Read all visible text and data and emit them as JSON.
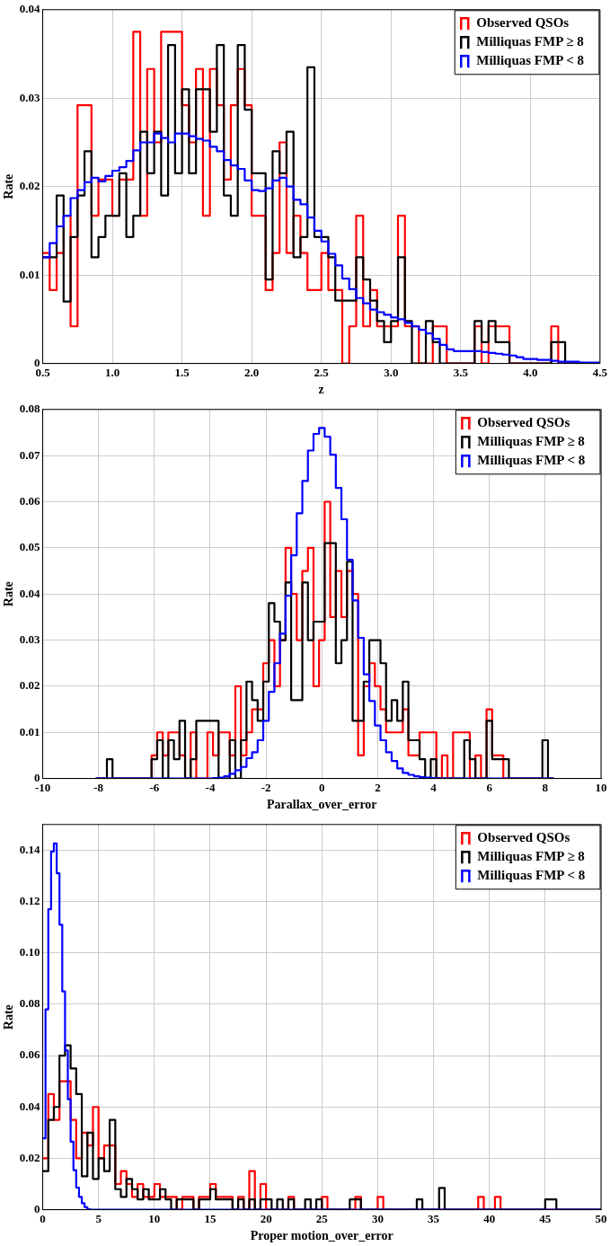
{
  "chart_data": [
    {
      "type": "histogram",
      "xlabel": "z",
      "ylabel": "Rate",
      "xlim": [
        0.5,
        4.5
      ],
      "xticks": [
        0.5,
        {
          "value": 1,
          "label": "1.0"
        },
        1.5,
        {
          "value": 2,
          "label": "2.0"
        },
        2.5,
        {
          "value": 3,
          "label": "3.0"
        },
        3.5,
        {
          "value": 4,
          "label": "4.0"
        },
        4.5
      ],
      "ylim": [
        0,
        0.04
      ],
      "yticks": [
        0,
        0.01,
        0.02,
        0.03,
        0.04
      ],
      "grid": true,
      "legend": "top right",
      "bins": [
        0.5,
        0.55,
        0.6,
        0.65,
        0.7,
        0.75,
        0.8,
        0.85,
        0.9,
        0.95,
        1.0,
        1.05,
        1.1,
        1.15,
        1.2,
        1.25,
        1.3,
        1.35,
        1.4,
        1.45,
        1.5,
        1.55,
        1.6,
        1.65,
        1.7,
        1.75,
        1.8,
        1.85,
        1.9,
        1.95,
        2.0,
        2.05,
        2.1,
        2.15,
        2.2,
        2.25,
        2.3,
        2.35,
        2.4,
        2.45,
        2.5,
        2.55,
        2.6,
        2.65,
        2.7,
        2.75,
        2.8,
        2.85,
        2.9,
        2.95,
        3.0,
        3.05,
        3.1,
        3.15,
        3.2,
        3.25,
        3.3,
        3.35,
        3.4,
        3.45,
        3.5,
        3.55,
        3.6,
        3.65,
        3.7,
        3.75,
        3.8,
        3.85,
        3.9,
        3.95,
        4.0,
        4.05,
        4.1,
        4.15,
        4.2,
        4.25,
        4.3,
        4.35,
        4.4,
        4.45,
        4.5
      ],
      "series": [
        {
          "name": "Observed QSOs",
          "color": "#ff0000",
          "values": [
            0.0125,
            0.0083,
            0.0125,
            0.0167,
            0.0042,
            0.0292,
            0.0292,
            0.0167,
            0.0208,
            0.0208,
            0.0167,
            0.0208,
            0.0208,
            0.0375,
            0.0167,
            0.0333,
            0.025,
            0.0375,
            0.0375,
            0.0375,
            0.0292,
            0.025,
            0.0333,
            0.0167,
            0.0333,
            0.0292,
            0.0208,
            0.0292,
            0.0333,
            0.0292,
            0.0167,
            0.0167,
            0.0083,
            0.0125,
            0.025,
            0.0125,
            0.0167,
            0.0125,
            0.0083,
            0.0083,
            0.0125,
            0.0083,
            0.0083,
            0,
            0.0042,
            0.0167,
            0.0042,
            0.0083,
            0.0042,
            0.0042,
            0.0042,
            0.0167,
            0.0042,
            0.0042,
            0,
            0,
            0.0042,
            0.0042,
            0,
            0,
            0,
            0,
            0.0042,
            0,
            0.0042,
            0.0042,
            0.0042,
            0,
            0,
            0,
            0,
            0,
            0,
            0.0042,
            0,
            0,
            0,
            0,
            0,
            0
          ]
        },
        {
          "name": "Milliquas FMP ≥ 8",
          "color": "#000000",
          "values": [
            0.012,
            0.012,
            0.019,
            0.007,
            0.0143,
            0.019,
            0.024,
            0.012,
            0.0143,
            0.0167,
            0.0167,
            0.0215,
            0.0143,
            0.0167,
            0.0262,
            0.0215,
            0.0262,
            0.019,
            0.036,
            0.0215,
            0.031,
            0.0215,
            0.031,
            0.031,
            0.0262,
            0.036,
            0.019,
            0.0167,
            0.036,
            0.0287,
            0.0215,
            0.0215,
            0.0095,
            0.024,
            0.0215,
            0.0262,
            0.012,
            0.0143,
            0.0335,
            0.0143,
            0.0143,
            0.012,
            0.0071,
            0.0071,
            0.0071,
            0.012,
            0.0095,
            0.0071,
            0.0048,
            0.0024,
            0.0048,
            0.012,
            0.0048,
            0,
            0,
            0.0048,
            0.0024,
            0,
            0,
            0,
            0,
            0,
            0.0048,
            0.0024,
            0.0048,
            0.0024,
            0.0024,
            0,
            0,
            0,
            0,
            0,
            0,
            0.0024,
            0.0024,
            0,
            0,
            0,
            0,
            0
          ]
        },
        {
          "name": "Milliquas FMP < 8",
          "color": "#0000ff",
          "values": [
            0.012,
            0.0136,
            0.0155,
            0.0167,
            0.0187,
            0.0196,
            0.0205,
            0.021,
            0.0206,
            0.0212,
            0.0218,
            0.0222,
            0.0229,
            0.0241,
            0.025,
            0.025,
            0.026,
            0.0255,
            0.025,
            0.026,
            0.026,
            0.0257,
            0.0254,
            0.0252,
            0.0245,
            0.024,
            0.023,
            0.0224,
            0.022,
            0.0207,
            0.0196,
            0.0195,
            0.0198,
            0.0207,
            0.021,
            0.02,
            0.0185,
            0.018,
            0.0165,
            0.015,
            0.0138,
            0.0124,
            0.0111,
            0.0096,
            0.0084,
            0.0074,
            0.0068,
            0.0061,
            0.0058,
            0.0055,
            0.0052,
            0.005,
            0.0046,
            0.0042,
            0.0038,
            0.0034,
            0.0028,
            0.0021,
            0.0016,
            0.0014,
            0.0014,
            0.0014,
            0.0014,
            0.0013,
            0.0012,
            0.0011,
            0.001,
            0.0009,
            0.0007,
            0.0005,
            0.0005,
            0.0004,
            0.0004,
            0.0003,
            0.0002,
            0.0002,
            0.0002,
            0.0001,
            0.0001,
            0.0001
          ]
        }
      ]
    },
    {
      "type": "histogram",
      "xlabel": "Parallax_over_error",
      "ylabel": "Rate",
      "xlim": [
        -10,
        10
      ],
      "xticks": [
        -10,
        -8,
        -6,
        -4,
        -2,
        0,
        2,
        4,
        6,
        8,
        10
      ],
      "ylim": [
        0,
        0.08
      ],
      "yticks": [
        0,
        0.01,
        0.02,
        0.03,
        0.04,
        0.05,
        0.06,
        0.07,
        0.08
      ],
      "grid": true,
      "legend": "top right",
      "bins": [
        -8.1,
        -7.9,
        -7.7,
        -7.5,
        -7.3,
        -7.1,
        -6.9,
        -6.7,
        -6.5,
        -6.3,
        -6.1,
        -5.9,
        -5.7,
        -5.5,
        -5.3,
        -5.1,
        -4.9,
        -4.7,
        -4.5,
        -4.3,
        -4.1,
        -3.9,
        -3.7,
        -3.5,
        -3.3,
        -3.1,
        -2.9,
        -2.7,
        -2.5,
        -2.3,
        -2.1,
        -1.9,
        -1.7,
        -1.5,
        -1.3,
        -1.1,
        -0.9,
        -0.7,
        -0.5,
        -0.3,
        -0.1,
        0.1,
        0.3,
        0.5,
        0.7,
        0.9,
        1.1,
        1.3,
        1.5,
        1.7,
        1.9,
        2.1,
        2.3,
        2.5,
        2.7,
        2.9,
        3.1,
        3.3,
        3.5,
        3.7,
        3.9,
        4.1,
        4.3,
        4.5,
        4.7,
        4.9,
        5.1,
        5.3,
        5.5,
        5.7,
        5.9,
        6.1,
        6.3,
        6.5,
        6.7,
        6.9,
        7.1,
        7.3,
        7.5,
        7.7,
        7.9,
        8.1,
        8.3
      ],
      "series": [
        {
          "name": "Observed QSOs",
          "color": "#ff0000",
          "values": [
            0,
            0,
            0,
            0,
            0,
            0,
            0,
            0,
            0,
            0,
            0.005,
            0.01,
            0.005,
            0.01,
            0.01,
            0.005,
            0,
            0.01,
            0,
            0,
            0.01,
            0.005,
            0.01,
            0.01,
            0.005,
            0.02,
            0.005,
            0.01,
            0.015,
            0.015,
            0.025,
            0.03,
            0.02,
            0.03,
            0.05,
            0.04,
            0.03,
            0.045,
            0.05,
            0.02,
            0.03,
            0.06,
            0.035,
            0.045,
            0.035,
            0.045,
            0.04,
            0.005,
            0.02,
            0.025,
            0.02,
            0.015,
            0.01,
            0.01,
            0.01,
            0.015,
            0.005,
            0.005,
            0.01,
            0.01,
            0.01,
            0,
            0.005,
            0,
            0.01,
            0.01,
            0.01,
            0,
            0.005,
            0,
            0.015,
            0.005,
            0.005,
            0,
            0,
            0,
            0,
            0,
            0,
            0,
            0,
            0
          ]
        },
        {
          "name": "Milliquas FMP ≥ 8",
          "color": "#000000",
          "values": [
            0,
            0,
            0.0042,
            0,
            0,
            0,
            0,
            0,
            0,
            0,
            0.0042,
            0.0083,
            0,
            0.0083,
            0.0042,
            0.0125,
            0,
            0.0042,
            0.0125,
            0.0125,
            0.0125,
            0.0125,
            0,
            0,
            0.0083,
            0,
            0.0083,
            0.021,
            0.017,
            0.0125,
            0.021,
            0.038,
            0.034,
            0.03,
            0.0425,
            0.017,
            0.017,
            0.0425,
            0.03,
            0.034,
            0.034,
            0.051,
            0.051,
            0.025,
            0.03,
            0.047,
            0.0125,
            0.0125,
            0.021,
            0.03,
            0.03,
            0.025,
            0.0125,
            0.017,
            0.0125,
            0.021,
            0.0083,
            0.0083,
            0.0042,
            0,
            0.0042,
            0,
            0,
            0,
            0,
            0,
            0.0083,
            0.0042,
            0,
            0,
            0.0125,
            0.0042,
            0.0042,
            0.0042,
            0,
            0,
            0,
            0,
            0,
            0,
            0.0083,
            0
          ]
        },
        {
          "name": "Milliquas FMP < 8",
          "color": "#0000ff",
          "values": [
            0,
            0,
            0,
            0,
            0,
            0,
            0,
            0,
            0,
            0,
            0,
            0,
            0,
            0,
            0,
            0,
            0,
            0,
            0,
            0,
            0,
            0.0001,
            0.0002,
            0.0005,
            0.001,
            0.0018,
            0.0025,
            0.0044,
            0.0057,
            0.0083,
            0.0125,
            0.0188,
            0.025,
            0.0314,
            0.0396,
            0.0484,
            0.0575,
            0.0645,
            0.0711,
            0.0747,
            0.076,
            0.0741,
            0.0702,
            0.063,
            0.0562,
            0.0474,
            0.0386,
            0.0305,
            0.0226,
            0.0168,
            0.0115,
            0.0083,
            0.0057,
            0.0038,
            0.0022,
            0.0012,
            0.0008,
            0.0005,
            0.0003,
            0.0002,
            0.0001,
            0,
            0,
            0,
            0,
            0,
            0,
            0,
            0,
            0,
            0,
            0,
            0,
            0,
            0,
            0,
            0,
            0,
            0,
            0,
            0,
            0
          ]
        }
      ]
    },
    {
      "type": "histogram",
      "xlabel": "Proper motion_over_error",
      "ylabel": "Rate",
      "xlim": [
        0,
        50
      ],
      "xticks": [
        0,
        5,
        10,
        15,
        20,
        25,
        30,
        35,
        40,
        45,
        50
      ],
      "ylim": [
        0,
        0.15
      ],
      "yticks": [
        0,
        0.02,
        0.04,
        0.06,
        0.08,
        {
          "value": 0.1,
          "label": "0.10"
        },
        0.12,
        0.14
      ],
      "grid": true,
      "legend": "top right",
      "bins": [
        0,
        0.5,
        1,
        1.5,
        2,
        2.5,
        3,
        3.5,
        4,
        4.5,
        5,
        5.5,
        6,
        6.5,
        7,
        7.5,
        8,
        8.5,
        9,
        9.5,
        10,
        10.5,
        11,
        11.5,
        12,
        12.5,
        13,
        13.5,
        14,
        14.5,
        15,
        15.5,
        16,
        16.5,
        17,
        17.5,
        18,
        18.5,
        19,
        19.5,
        20,
        20.5,
        21,
        21.5,
        22,
        22.5,
        23,
        23.5,
        24,
        24.5,
        25,
        25.5,
        26,
        26.5,
        27,
        27.5,
        28,
        28.5,
        29,
        29.5,
        30,
        30.5,
        31,
        31.5,
        32,
        32.5,
        33,
        33.5,
        34,
        34.5,
        35,
        35.5,
        36,
        36.5,
        37,
        37.5,
        38,
        38.5,
        39,
        39.5,
        40,
        40.5,
        41,
        41.5,
        42,
        42.5,
        43,
        43.5,
        44,
        44.5,
        45,
        45.5,
        46,
        46.5,
        47,
        47.5,
        48,
        48.5,
        49,
        49.5,
        50
      ],
      "series": [
        {
          "name": "Observed QSOs",
          "color": "#ff0000",
          "values": [
            0.02,
            0.045,
            0.035,
            0.05,
            0.05,
            0.035,
            0.02,
            0.03,
            0.025,
            0.04,
            0.02,
            0.025,
            0.025,
            0.01,
            0.015,
            0.01,
            0.005,
            0.01,
            0.005,
            0.005,
            0.01,
            0.005,
            0.005,
            0.005,
            0,
            0.005,
            0.005,
            0,
            0.005,
            0.005,
            0.01,
            0.005,
            0.005,
            0.005,
            0,
            0.005,
            0,
            0.015,
            0,
            0.01,
            0,
            0,
            0,
            0,
            0.005,
            0,
            0,
            0,
            0,
            0,
            0.005,
            0,
            0,
            0,
            0,
            0,
            0.005,
            0,
            0,
            0,
            0.005,
            0,
            0,
            0,
            0,
            0,
            0,
            0,
            0,
            0,
            0,
            0,
            0,
            0,
            0,
            0,
            0,
            0,
            0.005,
            0,
            0,
            0.005,
            0,
            0,
            0,
            0,
            0,
            0,
            0,
            0,
            0,
            0,
            0,
            0,
            0,
            0,
            0,
            0,
            0,
            0
          ]
        },
        {
          "name": "Milliquas FMP ≥ 8",
          "color": "#000000",
          "values": [
            0.015,
            0.035,
            0.04,
            0.06,
            0.064,
            0.055,
            0.045,
            0.013,
            0.03,
            0.012,
            0.02,
            0.015,
            0.035,
            0.008,
            0.005,
            0.012,
            0.008,
            0.004,
            0.008,
            0.004,
            0.004,
            0.008,
            0.004,
            0,
            0.004,
            0.004,
            0.004,
            0,
            0.004,
            0.004,
            0.008,
            0.004,
            0.004,
            0.004,
            0,
            0.004,
            0,
            0.004,
            0,
            0.004,
            0.004,
            0,
            0.004,
            0,
            0.004,
            0,
            0,
            0.004,
            0,
            0.004,
            0,
            0,
            0,
            0,
            0,
            0.004,
            0.004,
            0,
            0,
            0,
            0,
            0,
            0,
            0,
            0,
            0,
            0,
            0.004,
            0,
            0,
            0,
            0.0085,
            0,
            0,
            0,
            0,
            0,
            0,
            0,
            0,
            0,
            0,
            0,
            0,
            0,
            0,
            0,
            0,
            0,
            0,
            0.004,
            0.004,
            0,
            0,
            0,
            0,
            0,
            0,
            0,
            0
          ]
        },
        {
          "name": "Milliquas FMP < 8",
          "color": "#0000ff",
          "bins": [
            0,
            0.25,
            0.5,
            0.75,
            1,
            1.25,
            1.5,
            1.75,
            2,
            2.25,
            2.5,
            2.75,
            3,
            3.25,
            3.5,
            3.75,
            4,
            4.25,
            50
          ],
          "values": [
            0.0278,
            0.078,
            0.117,
            0.1395,
            0.1426,
            0.131,
            0.111,
            0.085,
            0.062,
            0.043,
            0.0265,
            0.0154,
            0.0086,
            0.005,
            0.0025,
            0.001,
            0.0002,
            0
          ]
        }
      ]
    }
  ]
}
